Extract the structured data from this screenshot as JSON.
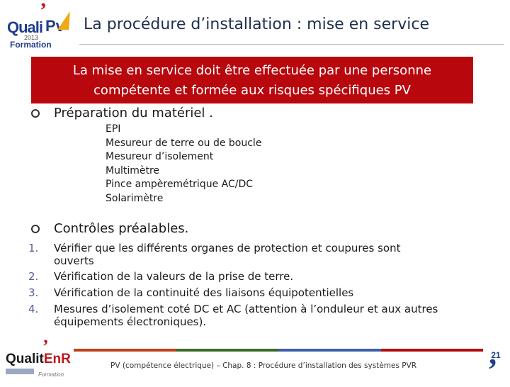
{
  "header": {
    "logo": {
      "brand_q": "Quali",
      "brand_pv": "Pv",
      "year": "2013",
      "tagline": "Formation"
    },
    "title": "La procédure d’installation : mise en service"
  },
  "banner": {
    "line1": "La mise en service doit être effectuée par une personne",
    "line2": "compétente et formée aux risques spécifiques PV",
    "color": "#b8070d"
  },
  "section1": {
    "heading": "Préparation du matériel .",
    "items": [
      "EPI",
      "Mesureur de terre ou de boucle",
      "Mesureur d’isolement",
      "Multimètre",
      "Pince ampèremétrique AC/DC",
      "Solarimètre"
    ]
  },
  "section2": {
    "heading": "Contrôles préalables.",
    "items": [
      {
        "num": "1.",
        "line1": "Vérifier que les différents organes de protection et coupures sont",
        "line2": "ouverts"
      },
      {
        "num": "2.",
        "line1": "Vérification de la valeurs de la prise de terre.",
        "line2": ""
      },
      {
        "num": "3.",
        "line1": "Vérification de la continuité des liaisons équipotentielles",
        "line2": ""
      },
      {
        "num": "4.",
        "line1": "Mesures d’isolement coté DC et AC (attention à l’onduleur et aux autres",
        "line2": "équipements électroniques)."
      }
    ]
  },
  "footer": {
    "logo": {
      "brand_a": "Qualit",
      "brand_b": "EnR",
      "tagline": "Formation"
    },
    "text": "PV (compétence électrique) – Chap. 8 : Procédure d’installation des systèmes PVR",
    "page": "21",
    "bar_colors": [
      "#c0401a",
      "#3a6a2a",
      "#3d5fa8",
      "#b8070d"
    ]
  }
}
